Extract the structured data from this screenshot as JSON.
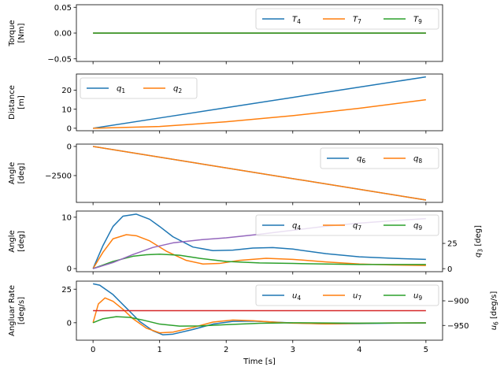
{
  "chart_data": [
    {
      "type": "line",
      "ylabel": "Torque\n[Nm]",
      "ylim": [
        -0.055,
        0.055
      ],
      "yticks": [
        -0.05,
        0.0,
        0.05
      ],
      "ytick_labels": [
        "−0.05",
        "0.00",
        "0.05"
      ],
      "xlim": [
        -0.25,
        5.25
      ],
      "legend": {
        "placement": "upper-right",
        "ncol": 3
      },
      "series": [
        {
          "name": "T_4",
          "label_main": "T",
          "label_sub": "4",
          "color": "#1f77b4",
          "x": [
            0,
            5
          ],
          "y": [
            0,
            0
          ]
        },
        {
          "name": "T_7",
          "label_main": "T",
          "label_sub": "7",
          "color": "#ff7f0e",
          "x": [
            0,
            5
          ],
          "y": [
            0,
            0
          ]
        },
        {
          "name": "T_9",
          "label_main": "T",
          "label_sub": "9",
          "color": "#2ca02c",
          "x": [
            0,
            5
          ],
          "y": [
            0,
            0
          ]
        }
      ]
    },
    {
      "type": "line",
      "ylabel": "Distance\n[m]",
      "ylim": [
        -1.3,
        28.5
      ],
      "yticks": [
        0,
        10,
        20
      ],
      "ytick_labels": [
        "0",
        "10",
        "20"
      ],
      "xlim": [
        -0.25,
        5.25
      ],
      "legend": {
        "placement": "upper-left",
        "ncol": 2
      },
      "series": [
        {
          "name": "q_1",
          "label_main": "q",
          "label_sub": "1",
          "color": "#1f77b4",
          "x": [
            0,
            1,
            2,
            3,
            4,
            5
          ],
          "y": [
            0,
            5.4,
            10.8,
            16.2,
            21.6,
            27.0
          ]
        },
        {
          "name": "q_2",
          "label_main": "q",
          "label_sub": "2",
          "color": "#ff7f0e",
          "x": [
            0,
            1,
            2,
            3,
            4,
            5
          ],
          "y": [
            0,
            0.9,
            3.4,
            6.6,
            10.5,
            15.0
          ]
        }
      ]
    },
    {
      "type": "line",
      "ylabel": "Angle\n[deg]",
      "ylim": [
        -4800,
        200
      ],
      "yticks": [
        0,
        -2500
      ],
      "ytick_labels": [
        "0",
        "−2500"
      ],
      "xlim": [
        -0.25,
        5.25
      ],
      "legend": {
        "placement": "upper-right",
        "ncol": 2
      },
      "series": [
        {
          "name": "q_6",
          "label_main": "q",
          "label_sub": "6",
          "color": "#1f77b4",
          "x": [
            0,
            5
          ],
          "y": [
            0,
            -4600
          ]
        },
        {
          "name": "q_8",
          "label_main": "q",
          "label_sub": "8",
          "color": "#ff7f0e",
          "x": [
            0,
            5
          ],
          "y": [
            0,
            -4600
          ]
        }
      ]
    },
    {
      "type": "line",
      "ylabel": "Angle\n[deg]",
      "ylabel_right": "q_3 [deg]",
      "ylabel_right_main": "q",
      "ylabel_right_sub": "3",
      "ylabel_right_tail": " [deg]",
      "ylim": [
        -0.6,
        11.2
      ],
      "yticks": [
        0,
        10
      ],
      "ytick_labels": [
        "0",
        "10"
      ],
      "ylim_right": [
        -3,
        57
      ],
      "yticks_right": [
        0,
        25
      ],
      "ytick_labels_right": [
        "0",
        "25"
      ],
      "xlim": [
        -0.25,
        5.25
      ],
      "legend": {
        "placement": "upper-right",
        "ncol": 3
      },
      "series": [
        {
          "name": "q_4",
          "label_main": "q",
          "label_sub": "4",
          "color": "#1f77b4",
          "x": [
            0,
            0.15,
            0.3,
            0.45,
            0.65,
            0.85,
            1.0,
            1.2,
            1.5,
            1.8,
            2.1,
            2.4,
            2.7,
            3.0,
            3.5,
            4.0,
            4.5,
            5.0
          ],
          "y": [
            0,
            4.5,
            8.2,
            10.2,
            10.6,
            9.6,
            8.2,
            6.2,
            4.2,
            3.5,
            3.6,
            4.0,
            4.1,
            3.8,
            2.9,
            2.3,
            2.0,
            1.8
          ]
        },
        {
          "name": "q_7",
          "label_main": "q",
          "label_sub": "7",
          "color": "#ff7f0e",
          "x": [
            0,
            0.15,
            0.3,
            0.5,
            0.65,
            0.85,
            1.1,
            1.4,
            1.65,
            1.9,
            2.2,
            2.6,
            3.0,
            3.5,
            4.0,
            4.5,
            5.0
          ],
          "y": [
            0,
            3.2,
            5.8,
            6.6,
            6.4,
            5.4,
            3.4,
            1.6,
            0.9,
            1.0,
            1.6,
            2.0,
            1.8,
            1.3,
            0.9,
            0.7,
            0.6
          ]
        },
        {
          "name": "q_9",
          "label_main": "q",
          "label_sub": "9",
          "color": "#2ca02c",
          "x": [
            0,
            0.3,
            0.6,
            0.8,
            1.0,
            1.3,
            1.6,
            2.0,
            2.5,
            3.0,
            3.5,
            4.0,
            4.5,
            5.0
          ],
          "y": [
            0,
            1.4,
            2.4,
            2.7,
            2.8,
            2.6,
            2.0,
            1.4,
            1.1,
            1.0,
            0.9,
            0.8,
            0.8,
            0.8
          ]
        },
        {
          "name": "q_3",
          "axis": "right",
          "color": "#9467bd",
          "x": [
            0,
            0.3,
            0.6,
            0.9,
            1.2,
            1.6,
            2.0,
            2.5,
            3.0,
            3.5,
            4.0,
            4.5,
            5.0
          ],
          "y": [
            0,
            6,
            14,
            21,
            25.5,
            28.5,
            30.5,
            34,
            38,
            42,
            45,
            47.5,
            49.5
          ]
        }
      ]
    },
    {
      "type": "line",
      "ylabel": "Angluar Rate\n[deg/s]",
      "ylabel_right": "u_6 [deg/s]",
      "ylabel_right_main": "u",
      "ylabel_right_sub": "6",
      "ylabel_right_tail": " [deg/s]",
      "ylim": [
        -13,
        31
      ],
      "yticks": [
        0,
        25
      ],
      "ytick_labels": [
        "0",
        "25"
      ],
      "ylim_right": [
        -980,
        -860
      ],
      "yticks_right": [
        -950,
        -900
      ],
      "ytick_labels_right": [
        "−950",
        "−900"
      ],
      "xlim": [
        -0.25,
        5.25
      ],
      "xticks": [
        0,
        1,
        2,
        3,
        4,
        5
      ],
      "xtick_labels": [
        "0",
        "1",
        "2",
        "3",
        "4",
        "5"
      ],
      "xlabel": "Time [s]",
      "legend": {
        "placement": "upper-right",
        "ncol": 3
      },
      "series": [
        {
          "name": "u_4",
          "label_main": "u",
          "label_sub": "4",
          "color": "#1f77b4",
          "x": [
            0,
            0.1,
            0.3,
            0.5,
            0.7,
            0.9,
            1.05,
            1.2,
            1.5,
            1.8,
            2.1,
            2.4,
            2.7,
            3.0,
            3.5,
            4.0,
            4.5,
            5.0
          ],
          "y": [
            29,
            28,
            21,
            11,
            1,
            -6,
            -9,
            -8.5,
            -5,
            -1,
            1,
            1.2,
            0.6,
            -0.2,
            -0.8,
            -0.6,
            -0.3,
            -0.2
          ]
        },
        {
          "name": "u_7",
          "label_main": "u",
          "label_sub": "7",
          "color": "#ff7f0e",
          "x": [
            0,
            0.08,
            0.18,
            0.3,
            0.45,
            0.6,
            0.8,
            1.0,
            1.2,
            1.5,
            1.8,
            2.1,
            2.4,
            2.7,
            3.0,
            3.5,
            4.0,
            4.5,
            5.0
          ],
          "y": [
            0,
            14,
            18.5,
            16,
            10,
            3,
            -4,
            -7.5,
            -7,
            -3.5,
            0.5,
            2,
            1.5,
            0.5,
            -0.3,
            -0.8,
            -0.4,
            -0.2,
            -0.1
          ]
        },
        {
          "name": "u_9",
          "label_main": "u",
          "label_sub": "9",
          "color": "#2ca02c",
          "x": [
            0,
            0.15,
            0.35,
            0.55,
            0.75,
            1.0,
            1.3,
            1.6,
            2.0,
            2.5,
            3.0,
            3.5,
            4.0,
            4.5,
            5.0
          ],
          "y": [
            0,
            3,
            4.5,
            4,
            2,
            -1,
            -2.5,
            -2.4,
            -1.4,
            -0.4,
            0,
            -0.2,
            -0.3,
            -0.2,
            -0.1
          ]
        },
        {
          "name": "u_6",
          "axis": "right",
          "color": "#d62728",
          "x": [
            0,
            5
          ],
          "y": [
            -920,
            -920
          ]
        }
      ]
    }
  ]
}
